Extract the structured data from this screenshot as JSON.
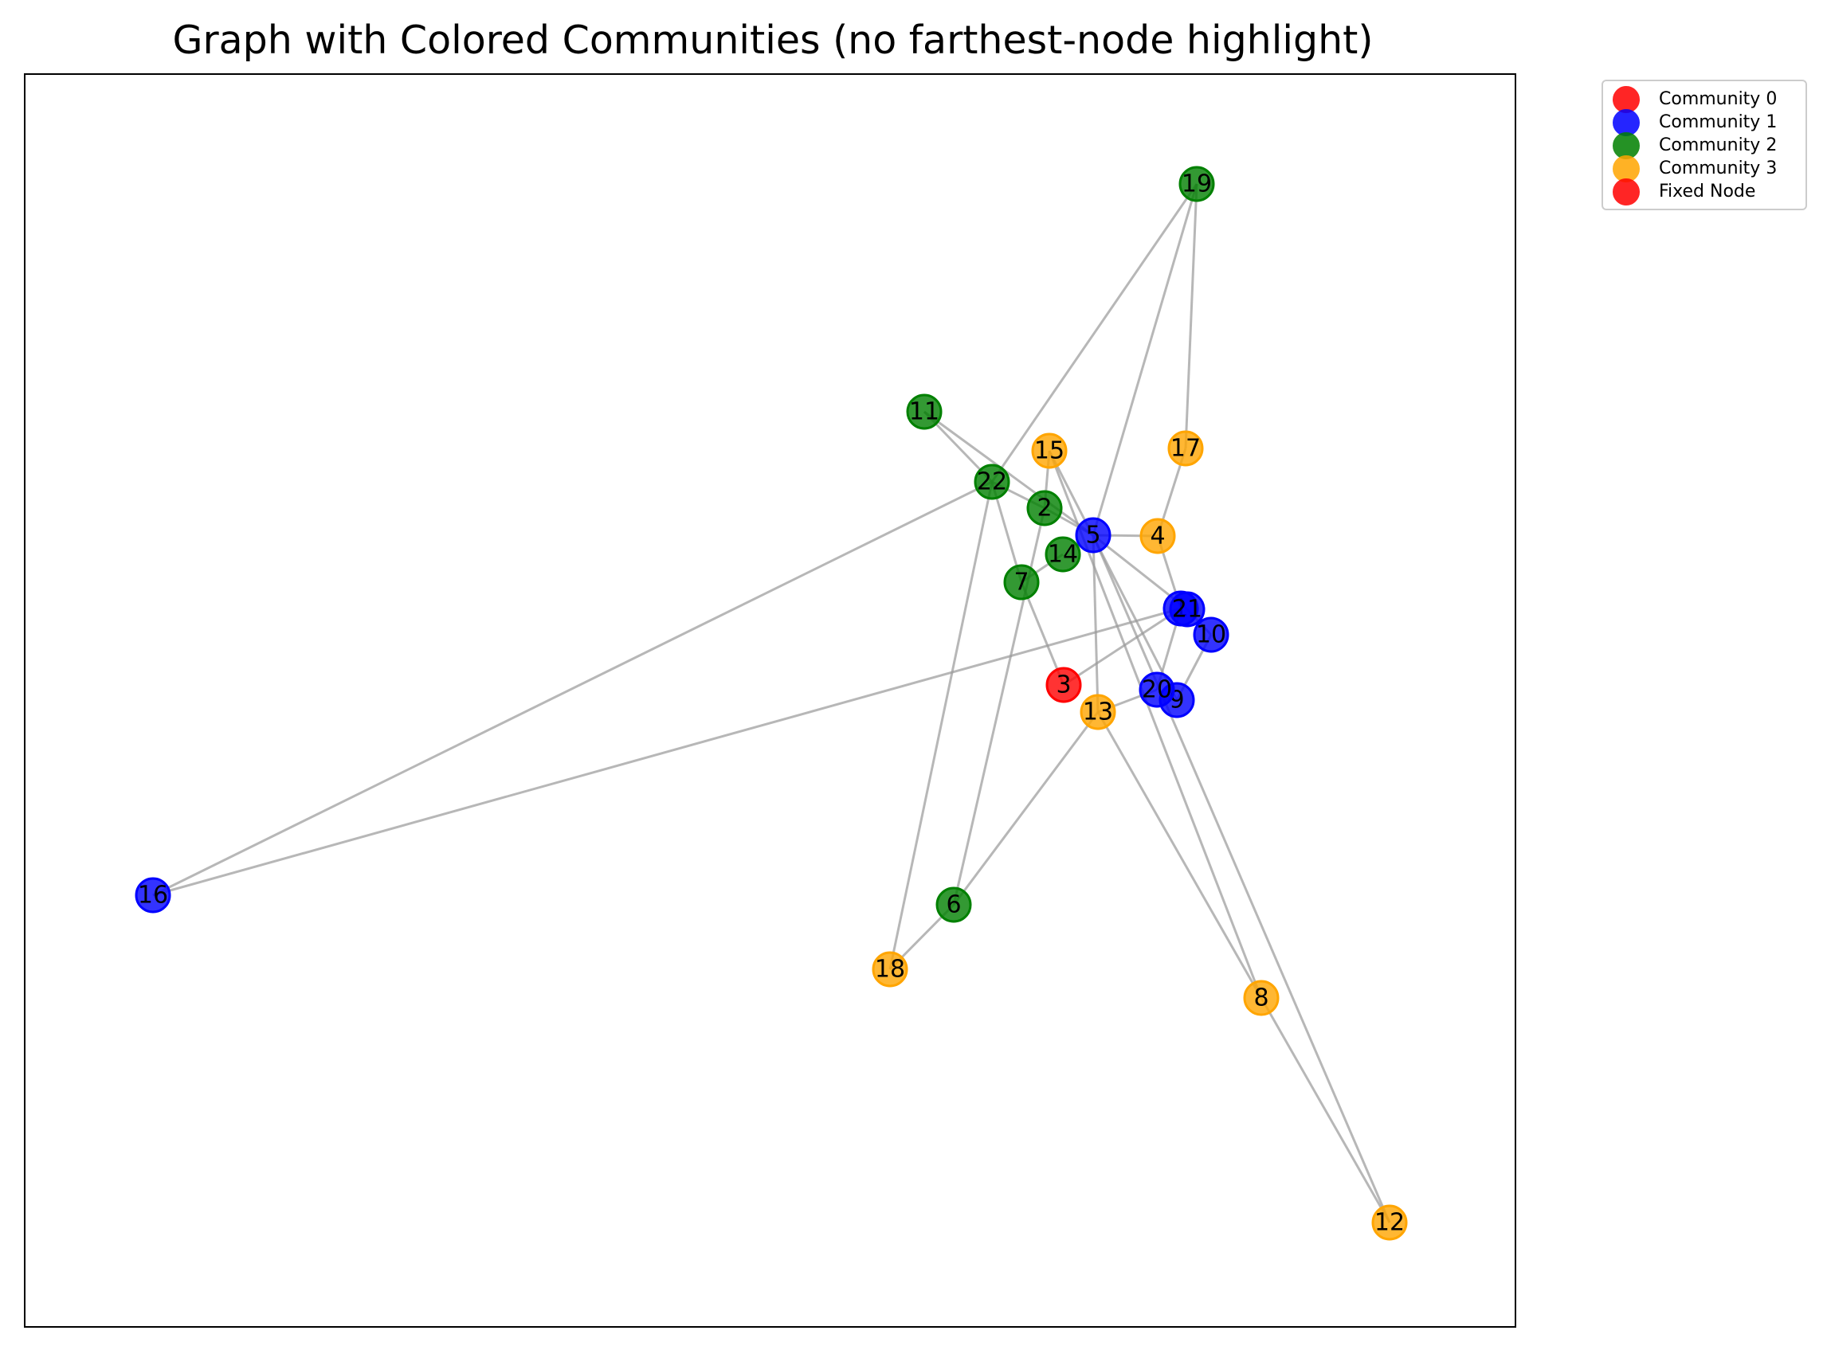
{
  "title": "Graph with Colored Communities (no farthest-node highlight)",
  "colors": {
    "community_0": "#ff0000",
    "community_1": "#0000ff",
    "community_2": "#008000",
    "community_3": "#ffa500",
    "fixed_node": "#ff0000",
    "edge": "#999999"
  },
  "legend": [
    {
      "label": "Community 0",
      "color": "#ff0000"
    },
    {
      "label": "Community 1",
      "color": "#0000ff"
    },
    {
      "label": "Community 2",
      "color": "#008000"
    },
    {
      "label": "Community 3",
      "color": "#ffa500"
    },
    {
      "label": "Fixed Node",
      "color": "#ff0000"
    }
  ],
  "chart_data": {
    "type": "network",
    "nodes": [
      {
        "id": "1",
        "community": 1
      },
      {
        "id": "2",
        "community": 2
      },
      {
        "id": "3",
        "community": "fixed"
      },
      {
        "id": "4",
        "community": 3
      },
      {
        "id": "5",
        "community": 1
      },
      {
        "id": "6",
        "community": 2
      },
      {
        "id": "7",
        "community": 2
      },
      {
        "id": "8",
        "community": 3
      },
      {
        "id": "9",
        "community": 1
      },
      {
        "id": "10",
        "community": 1
      },
      {
        "id": "11",
        "community": 2
      },
      {
        "id": "12",
        "community": 3
      },
      {
        "id": "13",
        "community": 3
      },
      {
        "id": "14",
        "community": 2
      },
      {
        "id": "15",
        "community": 3
      },
      {
        "id": "16",
        "community": 1
      },
      {
        "id": "17",
        "community": 3
      },
      {
        "id": "18",
        "community": 3
      },
      {
        "id": "19",
        "community": 2
      },
      {
        "id": "20",
        "community": 1
      },
      {
        "id": "21",
        "community": 1
      },
      {
        "id": "22",
        "community": 2
      }
    ],
    "edges": [
      [
        "11",
        "22"
      ],
      [
        "11",
        "5"
      ],
      [
        "22",
        "19"
      ],
      [
        "22",
        "16"
      ],
      [
        "22",
        "2"
      ],
      [
        "22",
        "7"
      ],
      [
        "22",
        "18"
      ],
      [
        "19",
        "17"
      ],
      [
        "19",
        "5"
      ],
      [
        "17",
        "4"
      ],
      [
        "15",
        "2"
      ],
      [
        "15",
        "9"
      ],
      [
        "15",
        "8"
      ],
      [
        "2",
        "5"
      ],
      [
        "2",
        "6"
      ],
      [
        "5",
        "4"
      ],
      [
        "5",
        "21"
      ],
      [
        "5",
        "13"
      ],
      [
        "5",
        "12"
      ],
      [
        "14",
        "7"
      ],
      [
        "4",
        "1"
      ],
      [
        "7",
        "3"
      ],
      [
        "1",
        "16"
      ],
      [
        "1",
        "3"
      ],
      [
        "1",
        "20"
      ],
      [
        "21",
        "10"
      ],
      [
        "10",
        "9"
      ],
      [
        "20",
        "13"
      ],
      [
        "13",
        "6"
      ],
      [
        "13",
        "8"
      ],
      [
        "6",
        "18"
      ],
      [
        "8",
        "12"
      ]
    ]
  }
}
